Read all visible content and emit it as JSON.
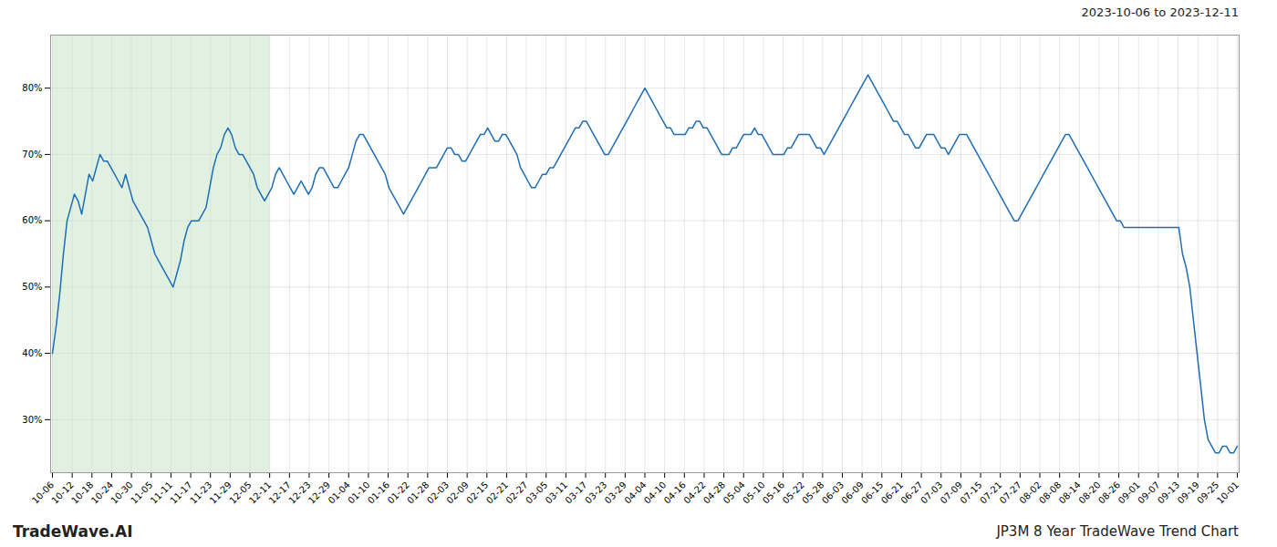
{
  "chart_data": {
    "type": "line",
    "title": "JP3M 8 Year TradeWave Trend Chart",
    "subtitle": "2023-10-06 to 2023-12-11",
    "annotations": [
      "TradeWave.AI"
    ],
    "color": "#1f6db5",
    "grid": true,
    "span": {
      "from": 0,
      "to": 59.4,
      "color": "#c8e6c8"
    },
    "xlim": [
      -0.5,
      324.5
    ],
    "xticks": [
      {
        "value": 0,
        "label": "10-06"
      },
      {
        "value": 5.4,
        "label": "10-12"
      },
      {
        "value": 10.8,
        "label": "10-18"
      },
      {
        "value": 16.2,
        "label": "10-24"
      },
      {
        "value": 21.6,
        "label": "10-30"
      },
      {
        "value": 27,
        "label": "11-05"
      },
      {
        "value": 32.4,
        "label": "11-11"
      },
      {
        "value": 37.8,
        "label": "11-17"
      },
      {
        "value": 43.2,
        "label": "11-23"
      },
      {
        "value": 48.6,
        "label": "11-29"
      },
      {
        "value": 54,
        "label": "12-05"
      },
      {
        "value": 59.4,
        "label": "12-11"
      },
      {
        "value": 64.8,
        "label": "12-17"
      },
      {
        "value": 70.2,
        "label": "12-23"
      },
      {
        "value": 75.6,
        "label": "12-29"
      },
      {
        "value": 81,
        "label": "01-04"
      },
      {
        "value": 86.4,
        "label": "01-10"
      },
      {
        "value": 91.8,
        "label": "01-16"
      },
      {
        "value": 97.2,
        "label": "01-22"
      },
      {
        "value": 102.6,
        "label": "01-28"
      },
      {
        "value": 108,
        "label": "02-03"
      },
      {
        "value": 113.4,
        "label": "02-09"
      },
      {
        "value": 118.8,
        "label": "02-15"
      },
      {
        "value": 124.2,
        "label": "02-21"
      },
      {
        "value": 129.6,
        "label": "02-27"
      },
      {
        "value": 135,
        "label": "03-05"
      },
      {
        "value": 140.4,
        "label": "03-11"
      },
      {
        "value": 145.8,
        "label": "03-17"
      },
      {
        "value": 151.2,
        "label": "03-23"
      },
      {
        "value": 156.6,
        "label": "03-29"
      },
      {
        "value": 162,
        "label": "04-04"
      },
      {
        "value": 167.4,
        "label": "04-10"
      },
      {
        "value": 172.8,
        "label": "04-16"
      },
      {
        "value": 178.2,
        "label": "04-22"
      },
      {
        "value": 183.6,
        "label": "04-28"
      },
      {
        "value": 189,
        "label": "05-04"
      },
      {
        "value": 194.4,
        "label": "05-10"
      },
      {
        "value": 199.8,
        "label": "05-16"
      },
      {
        "value": 205.2,
        "label": "05-22"
      },
      {
        "value": 210.6,
        "label": "05-28"
      },
      {
        "value": 216,
        "label": "06-03"
      },
      {
        "value": 221.4,
        "label": "06-09"
      },
      {
        "value": 226.8,
        "label": "06-15"
      },
      {
        "value": 232.2,
        "label": "06-21"
      },
      {
        "value": 237.6,
        "label": "06-27"
      },
      {
        "value": 243,
        "label": "07-03"
      },
      {
        "value": 248.4,
        "label": "07-09"
      },
      {
        "value": 253.8,
        "label": "07-15"
      },
      {
        "value": 259.2,
        "label": "07-21"
      },
      {
        "value": 264.6,
        "label": "07-27"
      },
      {
        "value": 270,
        "label": "08-02"
      },
      {
        "value": 275.4,
        "label": "08-08"
      },
      {
        "value": 280.8,
        "label": "08-14"
      },
      {
        "value": 286.2,
        "label": "08-20"
      },
      {
        "value": 291.6,
        "label": "08-26"
      },
      {
        "value": 297,
        "label": "09-01"
      },
      {
        "value": 302.4,
        "label": "09-07"
      },
      {
        "value": 307.8,
        "label": "09-13"
      },
      {
        "value": 313.2,
        "label": "09-19"
      },
      {
        "value": 318.6,
        "label": "09-25"
      },
      {
        "value": 324,
        "label": "10-01"
      }
    ],
    "ylim": [
      0.22,
      0.88
    ],
    "yticks": [
      {
        "value": 0.3,
        "label": "30%"
      },
      {
        "value": 0.4,
        "label": "40%"
      },
      {
        "value": 0.5,
        "label": "50%"
      },
      {
        "value": 0.6,
        "label": "60%"
      },
      {
        "value": 0.7,
        "label": "70%"
      },
      {
        "value": 0.8,
        "label": "80%"
      }
    ],
    "values": [
      0.4,
      0.44,
      0.49,
      0.55,
      0.6,
      0.62,
      0.64,
      0.63,
      0.61,
      0.64,
      0.67,
      0.66,
      0.68,
      0.7,
      0.69,
      0.69,
      0.68,
      0.67,
      0.66,
      0.65,
      0.67,
      0.65,
      0.63,
      0.62,
      0.61,
      0.6,
      0.59,
      0.57,
      0.55,
      0.54,
      0.53,
      0.52,
      0.51,
      0.5,
      0.52,
      0.54,
      0.57,
      0.59,
      0.6,
      0.6,
      0.6,
      0.61,
      0.62,
      0.65,
      0.68,
      0.7,
      0.71,
      0.73,
      0.74,
      0.73,
      0.71,
      0.7,
      0.7,
      0.69,
      0.68,
      0.67,
      0.65,
      0.64,
      0.63,
      0.64,
      0.65,
      0.67,
      0.68,
      0.67,
      0.66,
      0.65,
      0.64,
      0.65,
      0.66,
      0.65,
      0.64,
      0.65,
      0.67,
      0.68,
      0.68,
      0.67,
      0.66,
      0.65,
      0.65,
      0.66,
      0.67,
      0.68,
      0.7,
      0.72,
      0.73,
      0.73,
      0.72,
      0.71,
      0.7,
      0.69,
      0.68,
      0.67,
      0.65,
      0.64,
      0.63,
      0.62,
      0.61,
      0.62,
      0.63,
      0.64,
      0.65,
      0.66,
      0.67,
      0.68,
      0.68,
      0.68,
      0.69,
      0.7,
      0.71,
      0.71,
      0.7,
      0.7,
      0.69,
      0.69,
      0.7,
      0.71,
      0.72,
      0.73,
      0.73,
      0.74,
      0.73,
      0.72,
      0.72,
      0.73,
      0.73,
      0.72,
      0.71,
      0.7,
      0.68,
      0.67,
      0.66,
      0.65,
      0.65,
      0.66,
      0.67,
      0.67,
      0.68,
      0.68,
      0.69,
      0.7,
      0.71,
      0.72,
      0.73,
      0.74,
      0.74,
      0.75,
      0.75,
      0.74,
      0.73,
      0.72,
      0.71,
      0.7,
      0.7,
      0.71,
      0.72,
      0.73,
      0.74,
      0.75,
      0.76,
      0.77,
      0.78,
      0.79,
      0.8,
      0.79,
      0.78,
      0.77,
      0.76,
      0.75,
      0.74,
      0.74,
      0.73,
      0.73,
      0.73,
      0.73,
      0.74,
      0.74,
      0.75,
      0.75,
      0.74,
      0.74,
      0.73,
      0.72,
      0.71,
      0.7,
      0.7,
      0.7,
      0.71,
      0.71,
      0.72,
      0.73,
      0.73,
      0.73,
      0.74,
      0.73,
      0.73,
      0.72,
      0.71,
      0.7,
      0.7,
      0.7,
      0.7,
      0.71,
      0.71,
      0.72,
      0.73,
      0.73,
      0.73,
      0.73,
      0.72,
      0.71,
      0.71,
      0.7,
      0.71,
      0.72,
      0.73,
      0.74,
      0.75,
      0.76,
      0.77,
      0.78,
      0.79,
      0.8,
      0.81,
      0.82,
      0.81,
      0.8,
      0.79,
      0.78,
      0.77,
      0.76,
      0.75,
      0.75,
      0.74,
      0.73,
      0.73,
      0.72,
      0.71,
      0.71,
      0.72,
      0.73,
      0.73,
      0.73,
      0.72,
      0.71,
      0.71,
      0.7,
      0.71,
      0.72,
      0.73,
      0.73,
      0.73,
      0.72,
      0.71,
      0.7,
      0.69,
      0.68,
      0.67,
      0.66,
      0.65,
      0.64,
      0.63,
      0.62,
      0.61,
      0.6,
      0.6,
      0.61,
      0.62,
      0.63,
      0.64,
      0.65,
      0.66,
      0.67,
      0.68,
      0.69,
      0.7,
      0.71,
      0.72,
      0.73,
      0.73,
      0.72,
      0.71,
      0.7,
      0.69,
      0.68,
      0.67,
      0.66,
      0.65,
      0.64,
      0.63,
      0.62,
      0.61,
      0.6,
      0.6,
      0.59,
      0.59,
      0.59,
      0.59,
      0.59,
      0.59,
      0.59,
      0.59,
      0.59,
      0.59,
      0.59,
      0.59,
      0.59,
      0.59,
      0.59,
      0.59,
      0.55,
      0.53,
      0.5,
      0.45,
      0.4,
      0.35,
      0.3,
      0.27,
      0.26,
      0.25,
      0.25,
      0.26,
      0.26,
      0.25,
      0.25,
      0.26
    ]
  }
}
